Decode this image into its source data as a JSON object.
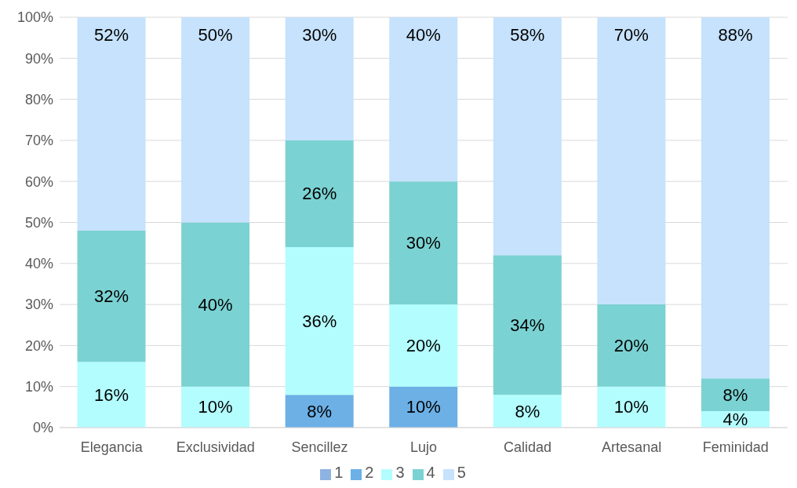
{
  "chart_data": {
    "type": "bar",
    "stacked": true,
    "categories": [
      "Elegancia",
      "Exclusividad",
      "Sencillez",
      "Lujo",
      "Calidad",
      "Artesanal",
      "Feminidad"
    ],
    "series": [
      {
        "name": "1",
        "color": "#8db3e2",
        "values": [
          null,
          null,
          null,
          null,
          null,
          null,
          null
        ]
      },
      {
        "name": "2",
        "color": "#6cb0e6",
        "values": [
          null,
          null,
          8,
          10,
          null,
          null,
          null
        ],
        "value_labels": [
          null,
          null,
          "8%",
          "10%",
          null,
          null,
          null
        ]
      },
      {
        "name": "3",
        "color": "#b3fdff",
        "values": [
          16,
          10,
          36,
          20,
          8,
          10,
          4
        ],
        "value_labels": [
          "16%",
          "10%",
          "36%",
          "20%",
          "8%",
          "10%",
          "4%"
        ]
      },
      {
        "name": "4",
        "color": "#7bd2d2",
        "values": [
          32,
          40,
          26,
          30,
          34,
          20,
          8
        ],
        "value_labels": [
          "32%",
          "40%",
          "26%",
          "30%",
          "34%",
          "20%",
          "8%"
        ]
      },
      {
        "name": "5",
        "color": "#c6e2fc",
        "values": [
          52,
          50,
          30,
          40,
          58,
          70,
          88
        ],
        "value_labels": [
          "52%",
          "50%",
          "30%",
          "40%",
          "58%",
          "70%",
          "88%"
        ]
      }
    ],
    "ylim": [
      0,
      100
    ],
    "yticks": [
      {
        "value": 0,
        "label": "0%"
      },
      {
        "value": 10,
        "label": "10%"
      },
      {
        "value": 20,
        "label": "20%"
      },
      {
        "value": 30,
        "label": "30%"
      },
      {
        "value": 40,
        "label": "40%"
      },
      {
        "value": 50,
        "label": "50%"
      },
      {
        "value": 60,
        "label": "60%"
      },
      {
        "value": 70,
        "label": "70%"
      },
      {
        "value": 80,
        "label": "80%"
      },
      {
        "value": 90,
        "label": "90%"
      },
      {
        "value": 100,
        "label": "100%"
      }
    ],
    "grid": "y",
    "legend": "bottom"
  }
}
